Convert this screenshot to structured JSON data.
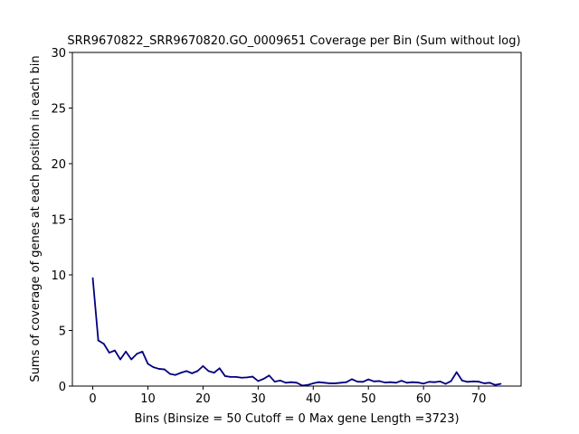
{
  "chart_data": {
    "type": "line",
    "title": "SRR9670822_SRR9670820.GO_0009651 Coverage per Bin (Sum without log)",
    "xlabel": "Bins  (Binsize = 50 Cutoff = 0 Max gene Length =3723)",
    "ylabel": "Sums of coverage of genes at each position in each bin",
    "xlim": [
      -3.7,
      77.7
    ],
    "ylim": [
      0,
      30
    ],
    "xticks": [
      0,
      10,
      20,
      30,
      40,
      50,
      60,
      70
    ],
    "yticks": [
      0,
      5,
      10,
      15,
      20,
      25,
      30
    ],
    "grid": false,
    "series": [
      {
        "color": "#000080",
        "x": [
          0,
          1,
          2,
          3,
          4,
          5,
          6,
          7,
          8,
          9,
          10,
          11,
          12,
          13,
          14,
          15,
          16,
          17,
          18,
          19,
          20,
          21,
          22,
          23,
          24,
          25,
          26,
          27,
          28,
          29,
          30,
          31,
          32,
          33,
          34,
          35,
          36,
          37,
          38,
          39,
          40,
          41,
          42,
          43,
          44,
          45,
          46,
          47,
          48,
          49,
          50,
          51,
          52,
          53,
          54,
          55,
          56,
          57,
          58,
          59,
          60,
          61,
          62,
          63,
          64,
          65,
          66,
          67,
          68,
          69,
          70,
          71,
          72,
          73,
          74
        ],
        "y": [
          9.7,
          4.1,
          3.8,
          3.0,
          3.2,
          2.4,
          3.1,
          2.4,
          2.9,
          3.1,
          2.0,
          1.7,
          1.55,
          1.5,
          1.1,
          1.0,
          1.2,
          1.35,
          1.15,
          1.35,
          1.8,
          1.35,
          1.2,
          1.6,
          0.9,
          0.82,
          0.82,
          0.75,
          0.78,
          0.85,
          0.45,
          0.65,
          0.95,
          0.4,
          0.5,
          0.3,
          0.35,
          0.3,
          0.05,
          0.1,
          0.25,
          0.35,
          0.3,
          0.25,
          0.25,
          0.3,
          0.35,
          0.62,
          0.4,
          0.38,
          0.6,
          0.42,
          0.45,
          0.32,
          0.35,
          0.3,
          0.48,
          0.3,
          0.35,
          0.32,
          0.22,
          0.38,
          0.35,
          0.42,
          0.2,
          0.45,
          1.25,
          0.5,
          0.38,
          0.42,
          0.4,
          0.25,
          0.3,
          0.1,
          0.2
        ]
      }
    ]
  }
}
